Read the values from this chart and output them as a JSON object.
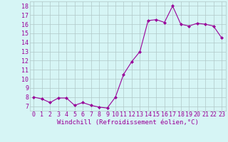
{
  "x": [
    0,
    1,
    2,
    3,
    4,
    5,
    6,
    7,
    8,
    9,
    10,
    11,
    12,
    13,
    14,
    15,
    16,
    17,
    18,
    19,
    20,
    21,
    22,
    23
  ],
  "y": [
    8.0,
    7.8,
    7.4,
    7.9,
    7.9,
    7.1,
    7.4,
    7.1,
    6.9,
    6.8,
    8.0,
    10.5,
    11.9,
    13.0,
    16.4,
    16.5,
    16.2,
    18.0,
    16.0,
    15.8,
    16.1,
    16.0,
    15.8,
    14.5
  ],
  "line_color": "#990099",
  "marker": "D",
  "marker_size": 2,
  "bg_color": "#d6f5f5",
  "grid_color": "#b0c8c8",
  "xlabel": "Windchill (Refroidissement éolien,°C)",
  "xlabel_color": "#990099",
  "xlabel_fontsize": 6.5,
  "tick_label_color": "#990099",
  "tick_fontsize": 6,
  "ylim": [
    6.5,
    18.5
  ],
  "yticks": [
    7,
    8,
    9,
    10,
    11,
    12,
    13,
    14,
    15,
    16,
    17,
    18
  ],
  "xticks": [
    0,
    1,
    2,
    3,
    4,
    5,
    6,
    7,
    8,
    9,
    10,
    11,
    12,
    13,
    14,
    15,
    16,
    17,
    18,
    19,
    20,
    21,
    22,
    23
  ]
}
